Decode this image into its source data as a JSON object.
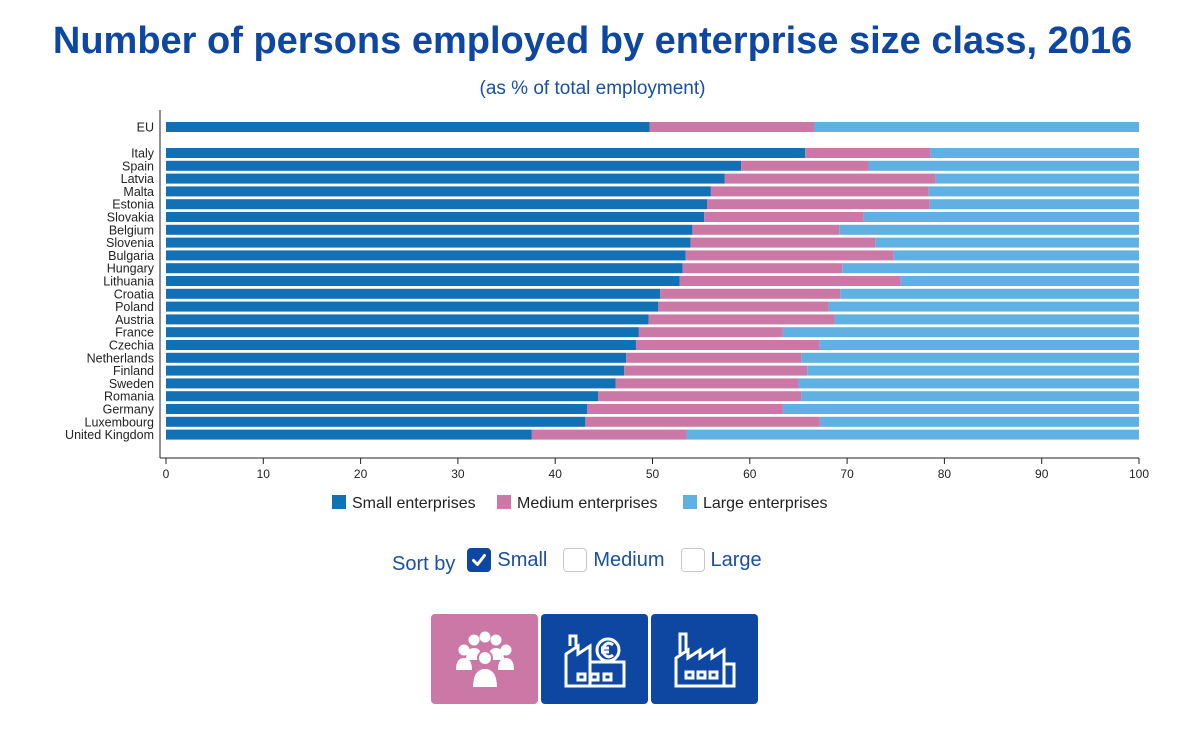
{
  "header": {
    "title": "Number of persons employed by enterprise size class, 2016",
    "subtitle": "(as % of total employment)"
  },
  "colors": {
    "small": "#1270b5",
    "medium": "#cc78a6",
    "large": "#5fb0e3",
    "accent": "#0e47a1",
    "people_button": "#cc78a6",
    "factory_button": "#0e47a1"
  },
  "chart_data": {
    "type": "bar",
    "orientation": "horizontal",
    "stacked": true,
    "title": "Number of persons employed by enterprise size class, 2016",
    "subtitle": "(as % of total employment)",
    "categories": [
      "EU",
      "Italy",
      "Spain",
      "Latvia",
      "Malta",
      "Estonia",
      "Slovakia",
      "Belgium",
      "Slovenia",
      "Bulgaria",
      "Hungary",
      "Lithuania",
      "Croatia",
      "Poland",
      "Austria",
      "France",
      "Czechia",
      "Netherlands",
      "Finland",
      "Sweden",
      "Romania",
      "Germany",
      "Luxembourg",
      "United Kingdom"
    ],
    "series": [
      {
        "name": "Small enterprises",
        "values": [
          49.7,
          65.7,
          59.1,
          57.4,
          56.0,
          55.6,
          55.3,
          54.1,
          53.9,
          53.4,
          53.1,
          52.8,
          50.8,
          50.6,
          49.6,
          48.6,
          48.3,
          47.3,
          47.1,
          46.2,
          44.4,
          43.3,
          43.1,
          37.6
        ]
      },
      {
        "name": "Medium enterprises",
        "values": [
          16.9,
          12.9,
          13.1,
          21.7,
          22.4,
          22.9,
          16.4,
          15.1,
          19.0,
          21.4,
          16.4,
          22.7,
          18.5,
          17.5,
          19.1,
          14.8,
          18.9,
          18.0,
          18.8,
          18.8,
          20.9,
          20.1,
          24.1,
          15.9
        ]
      },
      {
        "name": "Large enterprises",
        "values": [
          33.4,
          21.4,
          27.8,
          20.9,
          21.6,
          21.5,
          28.3,
          30.8,
          27.1,
          25.2,
          30.5,
          24.5,
          30.7,
          31.9,
          31.3,
          36.6,
          32.8,
          34.7,
          34.1,
          35.0,
          34.7,
          36.6,
          32.8,
          46.5
        ]
      }
    ],
    "xlim": [
      0,
      100
    ],
    "xticks": [
      0,
      10,
      20,
      30,
      40,
      50,
      60,
      70,
      80,
      90,
      100
    ],
    "grid": false,
    "legend_position": "bottom"
  },
  "sort": {
    "title": "Sort by",
    "options": [
      {
        "label": "Small",
        "checked": true
      },
      {
        "label": "Medium",
        "checked": false
      },
      {
        "label": "Large",
        "checked": false
      }
    ]
  },
  "buttons": [
    {
      "icon": "people-group-icon"
    },
    {
      "icon": "factory-euro-icon"
    },
    {
      "icon": "factory-icon"
    }
  ]
}
